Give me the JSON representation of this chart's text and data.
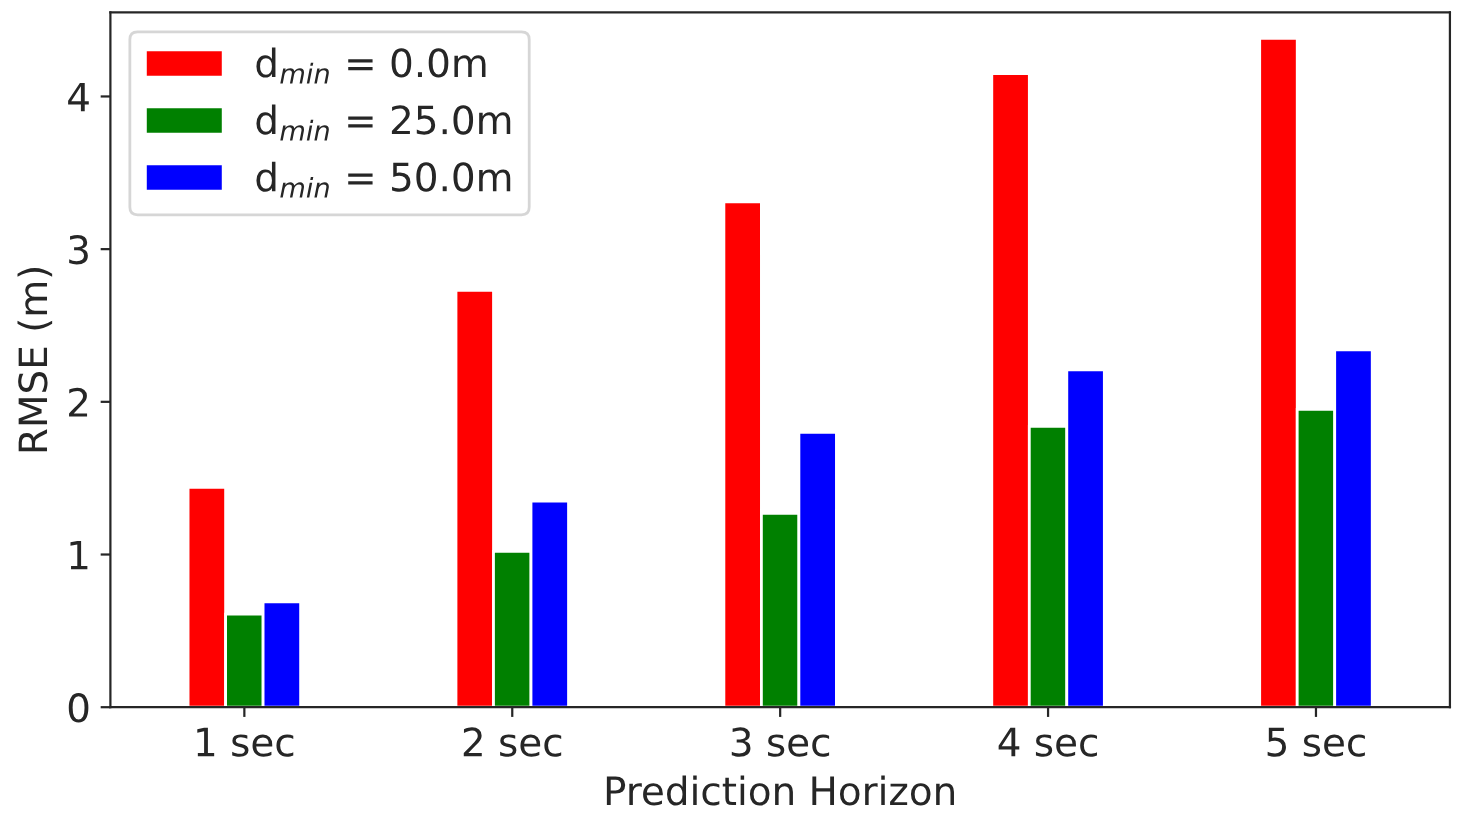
{
  "chart_data": {
    "type": "bar",
    "xlabel": "Prediction Horizon",
    "ylabel": "RMSE (m)",
    "categories": [
      "1 sec",
      "2 sec",
      "3 sec",
      "4 sec",
      "5 sec"
    ],
    "series": [
      {
        "name": "d$_{min}$ = 0.0m",
        "color": "#ff0000",
        "values": [
          1.44,
          2.73,
          3.31,
          4.15,
          4.38
        ]
      },
      {
        "name": "d$_{min}$ = 25.0m",
        "color": "#008000",
        "values": [
          0.61,
          1.02,
          1.27,
          1.84,
          1.95
        ]
      },
      {
        "name": "d$_{min}$ = 50.0m",
        "color": "#0000ff",
        "values": [
          0.69,
          1.35,
          1.8,
          2.21,
          2.34
        ]
      }
    ],
    "ylim": [
      0,
      4.55
    ],
    "yticks": [
      0,
      1,
      2,
      3,
      4
    ],
    "grid": false,
    "legend": "top left"
  }
}
